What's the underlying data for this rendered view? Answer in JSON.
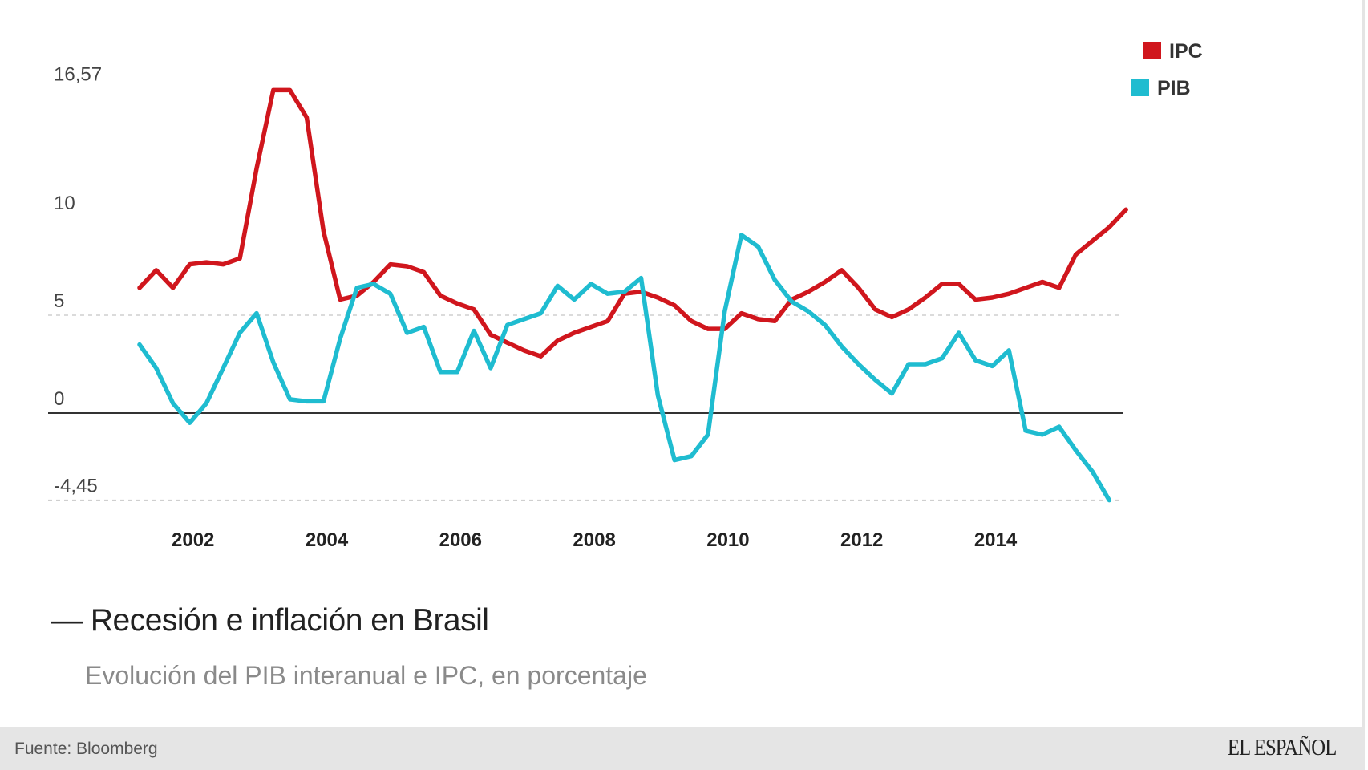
{
  "chart_data": {
    "type": "line",
    "title": "Recesión e inflación en Brasil",
    "title_prefix": "—",
    "subtitle": "Evolución del PIB interanual e IPC, en porcentaje",
    "xlabel": "",
    "ylabel": "",
    "x_start": "2001 Q1",
    "x_frequency": "quarterly",
    "x_ticks": [
      "2002",
      "2004",
      "2006",
      "2008",
      "2010",
      "2012",
      "2014"
    ],
    "y_ticks": [
      {
        "value": 16.57,
        "label": "16,57"
      },
      {
        "value": 10,
        "label": "10"
      },
      {
        "value": 5,
        "label": "5"
      },
      {
        "value": 0,
        "label": "0"
      },
      {
        "value": -4.45,
        "label": "-4,45"
      }
    ],
    "ylim": [
      -4.45,
      16.57
    ],
    "gridlines": [
      5,
      -4.45
    ],
    "zero_line": 0,
    "legend_position": "top-right",
    "series": [
      {
        "name": "IPC",
        "color": "#d0161d",
        "values": [
          6.4,
          7.3,
          6.4,
          7.6,
          7.7,
          7.6,
          7.9,
          12.5,
          16.5,
          16.5,
          15.1,
          9.3,
          5.8,
          6.0,
          6.7,
          7.6,
          7.5,
          7.2,
          6.0,
          5.6,
          5.3,
          4.0,
          3.6,
          3.2,
          2.9,
          3.7,
          4.1,
          4.4,
          4.7,
          6.1,
          6.2,
          5.9,
          5.5,
          4.7,
          4.3,
          4.3,
          5.1,
          4.8,
          4.7,
          5.8,
          6.2,
          6.7,
          7.3,
          6.4,
          5.3,
          4.9,
          5.3,
          5.9,
          6.6,
          6.6,
          5.8,
          5.9,
          6.1,
          6.4,
          6.7,
          6.4,
          8.1,
          8.8,
          9.5,
          10.4
        ]
      },
      {
        "name": "PIB",
        "color": "#1fbcd0",
        "values": [
          3.5,
          2.3,
          0.5,
          -0.5,
          0.5,
          2.3,
          4.1,
          5.1,
          2.6,
          0.7,
          0.6,
          0.6,
          3.8,
          6.4,
          6.6,
          6.1,
          4.1,
          4.4,
          2.1,
          2.1,
          4.2,
          2.3,
          4.5,
          4.8,
          5.1,
          6.5,
          5.8,
          6.6,
          6.1,
          6.2,
          6.9,
          0.9,
          -2.4,
          -2.2,
          -1.1,
          5.2,
          9.1,
          8.5,
          6.8,
          5.7,
          5.2,
          4.5,
          3.4,
          2.5,
          1.7,
          1.0,
          2.5,
          2.5,
          2.8,
          4.1,
          2.7,
          2.4,
          3.2,
          -0.9,
          -1.1,
          -0.7,
          -1.9,
          -3.0,
          -4.45
        ]
      }
    ]
  },
  "footer": {
    "source": "Fuente: Bloomberg",
    "logo": "EL ESPAÑOL"
  }
}
